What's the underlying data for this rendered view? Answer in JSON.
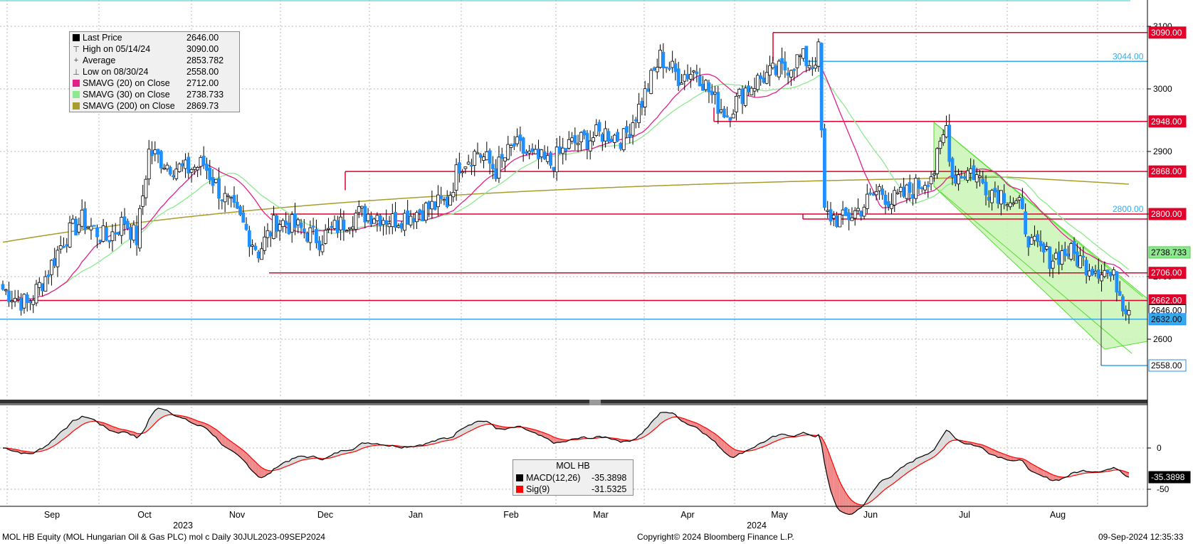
{
  "chart_data": {
    "type": "candlestick",
    "security": "MOL HB",
    "x_months": [
      "Sep",
      "Oct",
      "Nov",
      "Dec",
      "Jan",
      "Feb",
      "Mar",
      "Apr",
      "May",
      "Jun",
      "Jul",
      "Aug"
    ],
    "x_years": [
      "2023",
      "2024"
    ],
    "price_axis": {
      "ticks": [
        2600,
        2700,
        2800,
        2900,
        3000,
        3100
      ],
      "ylim": [
        2520,
        3120
      ]
    },
    "macd_axis": {
      "ticks": [
        0,
        -50
      ]
    },
    "legend_price": [
      {
        "label": "Last Price",
        "value": "2646.00",
        "color": "#000000",
        "marker": "box"
      },
      {
        "label": "High on 05/14/24",
        "value": "3090.00",
        "color": "#000000",
        "marker": "high"
      },
      {
        "label": "Average",
        "value": "2853.782",
        "color": "#000000",
        "marker": "avg"
      },
      {
        "label": "Low on 08/30/24",
        "value": "2558.00",
        "color": "#000000",
        "marker": "low"
      },
      {
        "label": "SMAVG (20)  on Close",
        "value": "2712.00",
        "color": "#e0218a",
        "marker": "box"
      },
      {
        "label": "SMAVG (30)  on Close",
        "value": "2738.733",
        "color": "#8ee88e",
        "marker": "box"
      },
      {
        "label": "SMAVG (200)  on Close",
        "value": "2869.73",
        "color": "#a89c2a",
        "marker": "box"
      }
    ],
    "legend_macd": {
      "title": "MOL HB",
      "items": [
        {
          "label": "MACD(12,26)",
          "value": "-35.3898",
          "color": "#000000"
        },
        {
          "label": "Sig(9)",
          "value": "-31.5325",
          "color": "#ff0000"
        }
      ]
    },
    "levels": [
      {
        "value": 3090,
        "label": "3090.00",
        "kind": "resistance"
      },
      {
        "value": 3044,
        "label": "3044.00",
        "kind": "info"
      },
      {
        "value": 2948,
        "label": "2948.00",
        "kind": "resistance"
      },
      {
        "value": 2868,
        "label": "2868.00",
        "kind": "resistance"
      },
      {
        "value": 2800,
        "label": "2800.00",
        "kind": "resistance"
      },
      {
        "value": 2800,
        "label": "2800.00",
        "kind": "info"
      },
      {
        "value": 2738.733,
        "label": "2738.733",
        "kind": "ma30"
      },
      {
        "value": 2706,
        "label": "2706.00",
        "kind": "resistance"
      },
      {
        "value": 2662,
        "label": "2662.00",
        "kind": "resistance"
      },
      {
        "value": 2646,
        "label": "2646.00",
        "kind": "last"
      },
      {
        "value": 2632,
        "label": "2632.00",
        "kind": "support"
      },
      {
        "value": 2558,
        "label": "2558.00",
        "kind": "low"
      }
    ],
    "macd_last_label": "-35.3898",
    "close_anchors": [
      [
        0,
        2680
      ],
      [
        8,
        2655
      ],
      [
        14,
        2700
      ],
      [
        20,
        2760
      ],
      [
        26,
        2790
      ],
      [
        34,
        2760
      ],
      [
        40,
        2790
      ],
      [
        44,
        2760
      ],
      [
        48,
        2900
      ],
      [
        54,
        2880
      ],
      [
        60,
        2870
      ],
      [
        66,
        2880
      ],
      [
        72,
        2830
      ],
      [
        78,
        2790
      ],
      [
        84,
        2740
      ],
      [
        90,
        2790
      ],
      [
        96,
        2780
      ],
      [
        104,
        2760
      ],
      [
        110,
        2780
      ],
      [
        116,
        2800
      ],
      [
        122,
        2800
      ],
      [
        128,
        2790
      ],
      [
        134,
        2800
      ],
      [
        140,
        2810
      ],
      [
        146,
        2820
      ],
      [
        150,
        2880
      ],
      [
        156,
        2900
      ],
      [
        162,
        2870
      ],
      [
        168,
        2910
      ],
      [
        174,
        2890
      ],
      [
        180,
        2880
      ],
      [
        186,
        2910
      ],
      [
        192,
        2920
      ],
      [
        198,
        2930
      ],
      [
        204,
        2920
      ],
      [
        210,
        2980
      ],
      [
        216,
        3050
      ],
      [
        222,
        3020
      ],
      [
        228,
        3030
      ],
      [
        234,
        2980
      ],
      [
        238,
        2960
      ],
      [
        244,
        3000
      ],
      [
        250,
        3020
      ],
      [
        256,
        3030
      ],
      [
        262,
        3050
      ],
      [
        266,
        3040
      ],
      [
        268,
        3060
      ],
      [
        270,
        2800
      ],
      [
        276,
        2790
      ],
      [
        282,
        2810
      ],
      [
        288,
        2840
      ],
      [
        292,
        2820
      ],
      [
        296,
        2830
      ],
      [
        302,
        2850
      ],
      [
        306,
        2870
      ],
      [
        310,
        2940
      ],
      [
        312,
        2860
      ],
      [
        318,
        2870
      ],
      [
        324,
        2840
      ],
      [
        330,
        2830
      ],
      [
        334,
        2810
      ],
      [
        338,
        2750
      ],
      [
        344,
        2730
      ],
      [
        350,
        2740
      ],
      [
        356,
        2720
      ],
      [
        362,
        2710
      ],
      [
        366,
        2690
      ],
      [
        368,
        2660
      ],
      [
        370,
        2646
      ]
    ],
    "n_bars": 371
  },
  "footer": {
    "left": "MOL HB Equity (MOL Hungarian Oil & Gas PLC) mol c  Daily 30JUL2023-09SEP2024",
    "center": "Copyright© 2024 Bloomberg Finance L.P.",
    "right": "09-Sep-2024 12:35:33"
  },
  "colors": {
    "up_bar": "#000000",
    "down_bar": "#1e90ff",
    "resistance": "#e0002a",
    "info_line": "#33aaee",
    "ma20": "#e0218a",
    "ma30": "#8ee88e",
    "ma200": "#a89c2a",
    "channel_fill": "#c9f5b4"
  }
}
